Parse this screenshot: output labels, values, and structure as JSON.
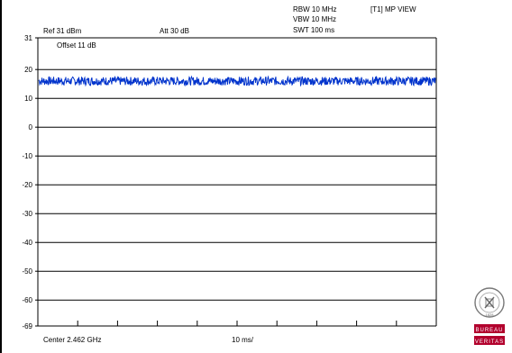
{
  "header": {
    "rbw": "RBW 10 MHz",
    "vbw": "VBW 10 MHz",
    "swt": "SWT 100 ms",
    "trace_mode": "[T1] MP VIEW",
    "ref": "Ref 31 dBm",
    "att": "Att  30 dB",
    "offset": "Offset 11 dB"
  },
  "footer": {
    "center": "Center 2.462 GHz",
    "span": "10 ms/"
  },
  "logo": {
    "line1": "BUREAU",
    "line2": "VERITAS",
    "year": "1828",
    "color": "#b2002d"
  },
  "chart_data": {
    "type": "line",
    "y_tick_labels": [
      "31",
      "20",
      "10",
      "0",
      "-10",
      "-20",
      "-30",
      "-40",
      "-50",
      "-60",
      "-69"
    ],
    "ylim": [
      -69,
      31
    ],
    "x_divisions": 10,
    "grid": true,
    "series": [
      {
        "values": "noise band approx 14.5 to 17.5 dBm across full sweep",
        "level": 16,
        "spread": 1.5,
        "color": "#0033cc"
      }
    ]
  }
}
